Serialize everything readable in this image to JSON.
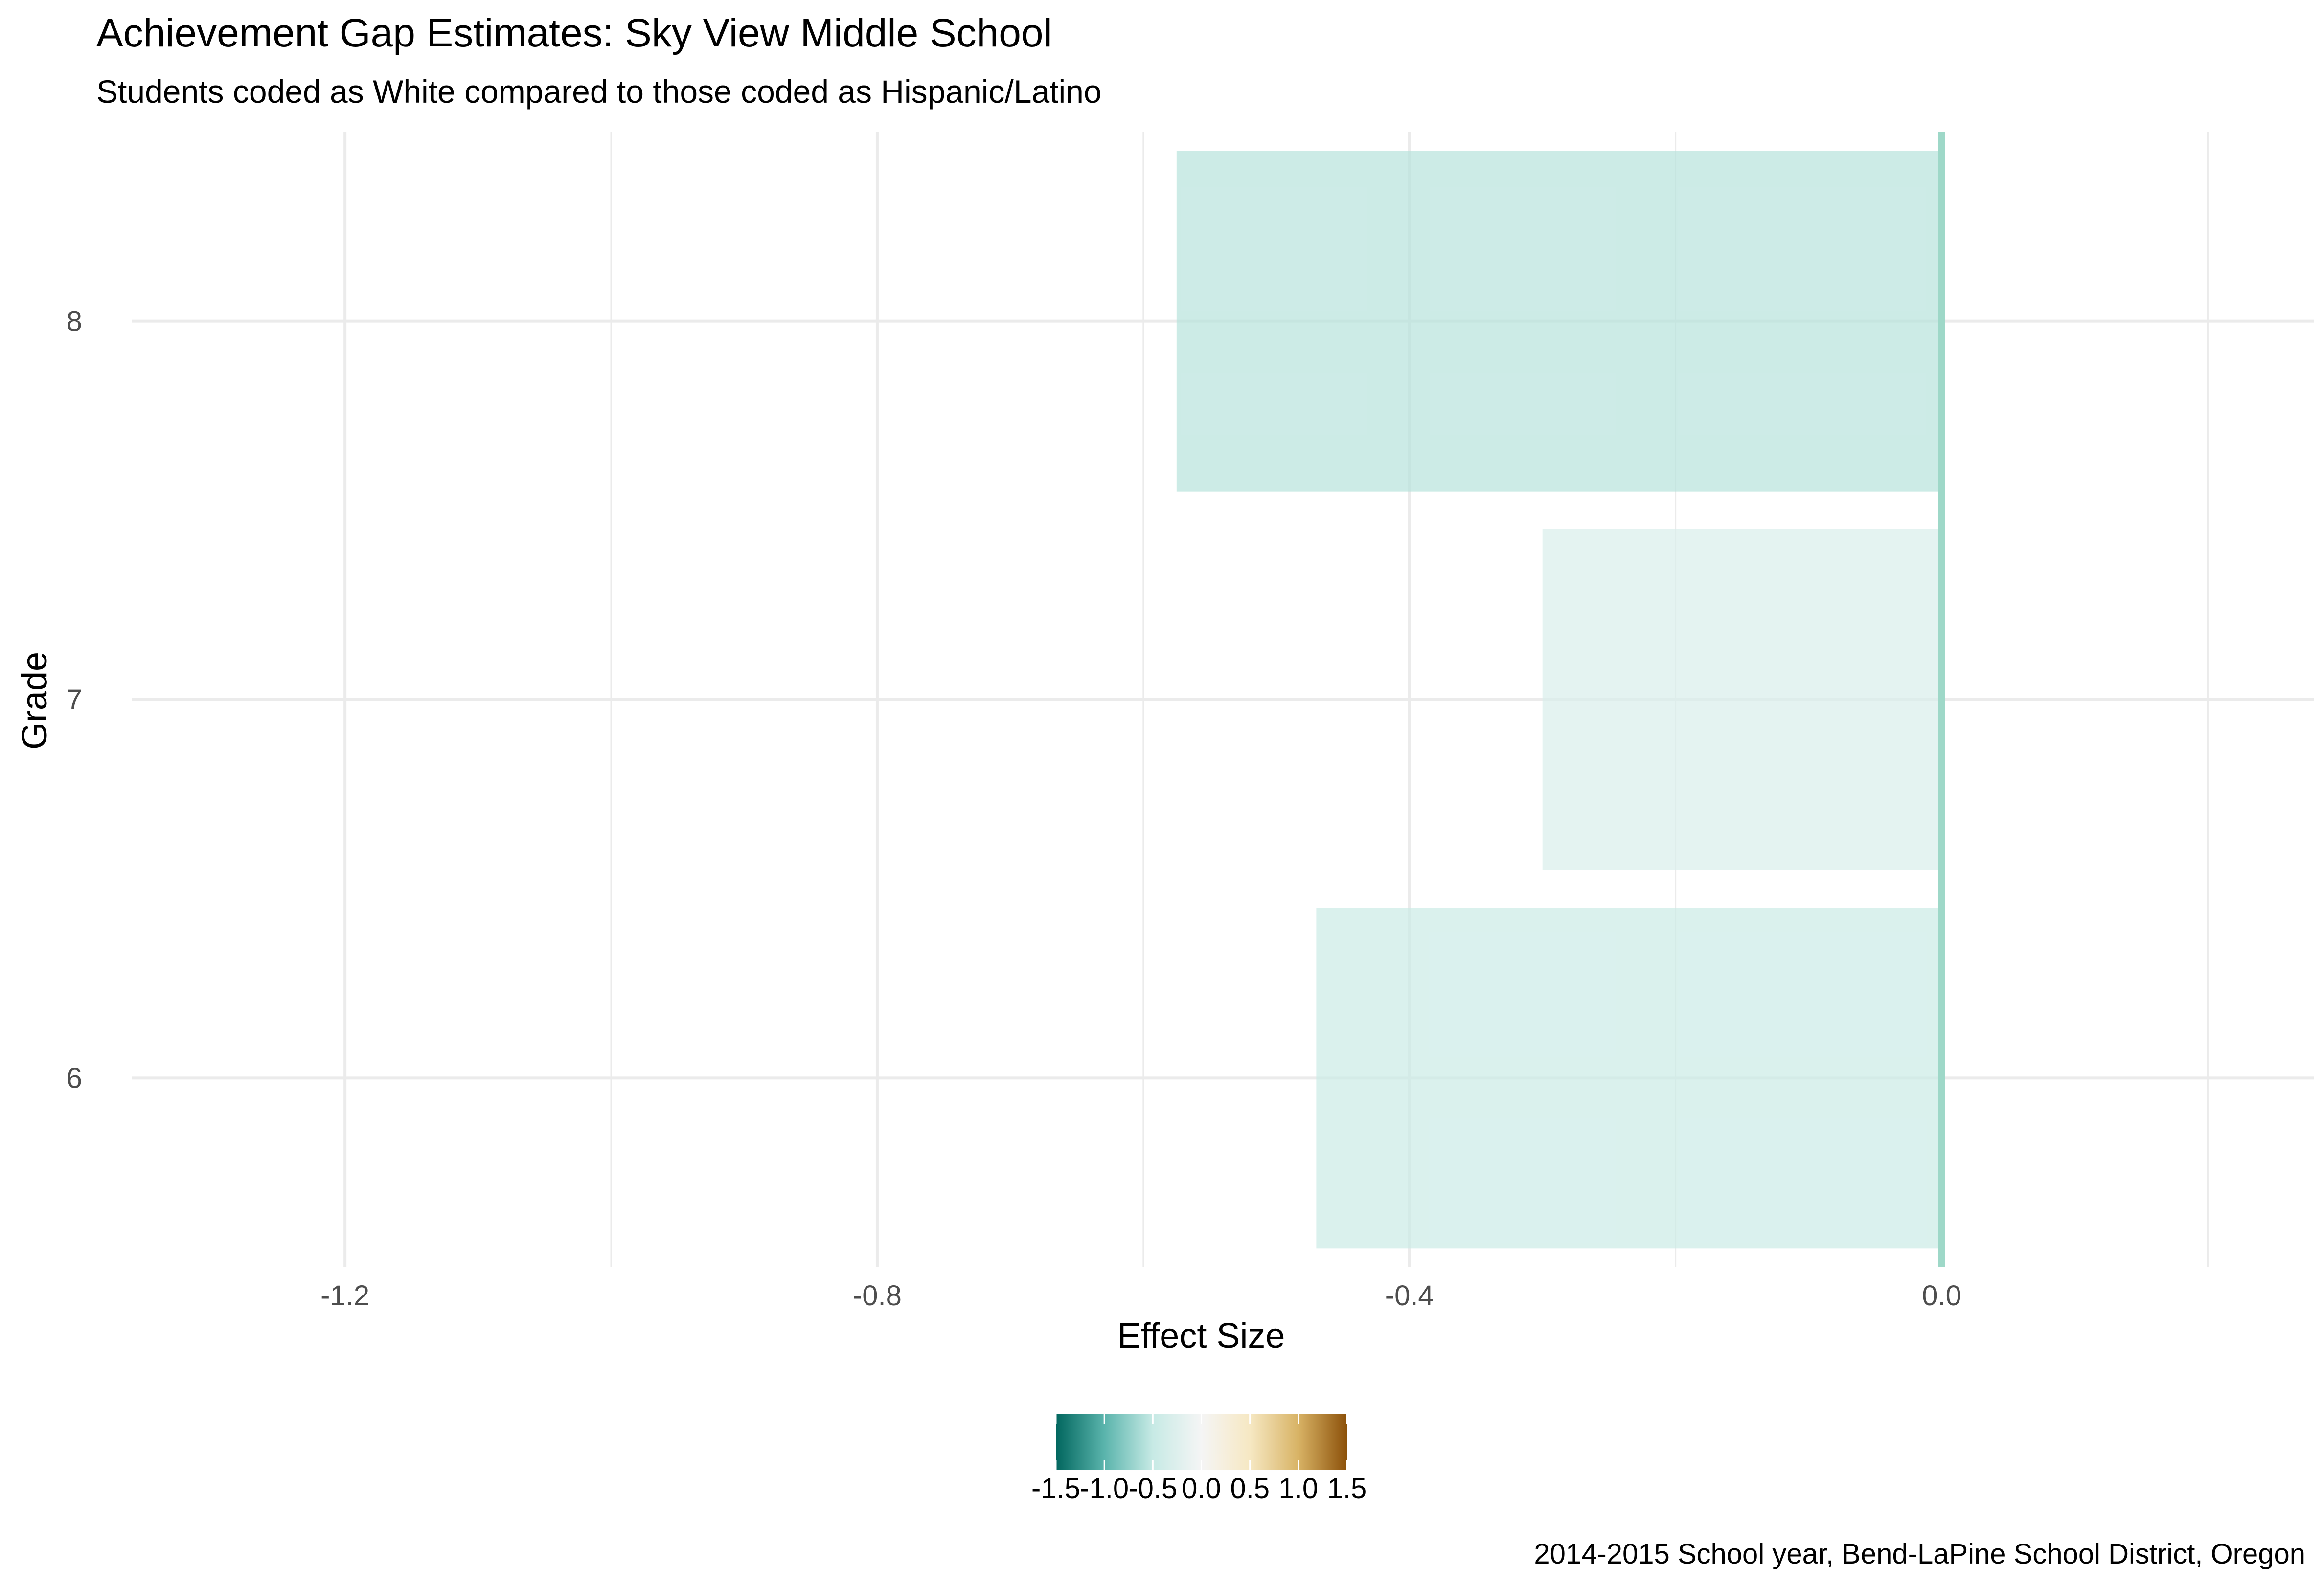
{
  "chart_data": {
    "type": "bar",
    "orientation": "horizontal",
    "title": "Achievement Gap Estimates: Sky View Middle School",
    "subtitle": "Students coded as White compared to those coded as Hispanic/Latino",
    "xlabel": "Effect Size",
    "ylabel": "Grade",
    "caption": "2014-2015 School year, Bend-LaPine School District, Oregon",
    "categories": [
      "6",
      "7",
      "8"
    ],
    "values": [
      -0.47,
      -0.3,
      -0.575
    ],
    "xlim": [
      -1.36,
      0.28
    ],
    "xticks": [
      -1.2,
      -0.8,
      -0.4,
      0.0
    ],
    "xtick_labels": [
      "-1.2",
      "-0.8",
      "-0.4",
      "0.0"
    ],
    "reference_line": 0.0,
    "grid": true,
    "legend": {
      "position": "bottom",
      "type": "colorbar",
      "range": [
        -1.5,
        1.5
      ],
      "ticks": [
        -1.5,
        -1.0,
        -0.5,
        0.0,
        0.5,
        1.0,
        1.5
      ],
      "tick_labels": [
        "-1.5",
        "-1.0",
        "-0.5",
        "0.0",
        "0.5",
        "1.0",
        "1.5"
      ],
      "colors": [
        "#01665e",
        "#5ab4ac",
        "#c7eae5",
        "#f5f5f5",
        "#f6e8c3",
        "#d8b365",
        "#8c510a"
      ]
    },
    "colors": {
      "reference_line": "#9ed8c8",
      "grid": "#ebebeb",
      "axis_text": "#4d4d4d"
    }
  }
}
